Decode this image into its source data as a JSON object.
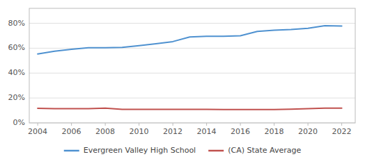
{
  "chart_data": {
    "type": "line",
    "x": [
      2004,
      2005,
      2006,
      2007,
      2008,
      2009,
      2010,
      2011,
      2012,
      2013,
      2014,
      2015,
      2016,
      2017,
      2018,
      2019,
      2020,
      2021,
      2022
    ],
    "series": [
      {
        "name": "Evergreen Valley High School",
        "color": "#4e91d0",
        "values": [
          0.554,
          0.576,
          0.591,
          0.603,
          0.603,
          0.607,
          0.62,
          0.635,
          0.653,
          0.69,
          0.695,
          0.695,
          0.7,
          0.735,
          0.745,
          0.75,
          0.76,
          0.78,
          0.778
        ]
      },
      {
        "name": "(CA) State Average",
        "color": "#c0504d",
        "values": [
          0.117,
          0.115,
          0.114,
          0.115,
          0.118,
          0.109,
          0.109,
          0.109,
          0.109,
          0.109,
          0.109,
          0.108,
          0.108,
          0.108,
          0.107,
          0.11,
          0.115,
          0.118,
          0.118
        ]
      }
    ],
    "xlim": [
      2003.5,
      2022.8
    ],
    "xticks": [
      2004,
      2006,
      2008,
      2010,
      2012,
      2014,
      2016,
      2018,
      2020,
      2022
    ],
    "ylim": [
      0,
      0.92
    ],
    "yticks": [
      {
        "value": 0,
        "label": "0%"
      },
      {
        "value": 0.2,
        "label": "20%"
      },
      {
        "value": 0.4,
        "label": "40%"
      },
      {
        "value": 0.6,
        "label": "60%"
      },
      {
        "value": 0.8,
        "label": "80%"
      }
    ],
    "grid": true,
    "legend": "bottom"
  }
}
